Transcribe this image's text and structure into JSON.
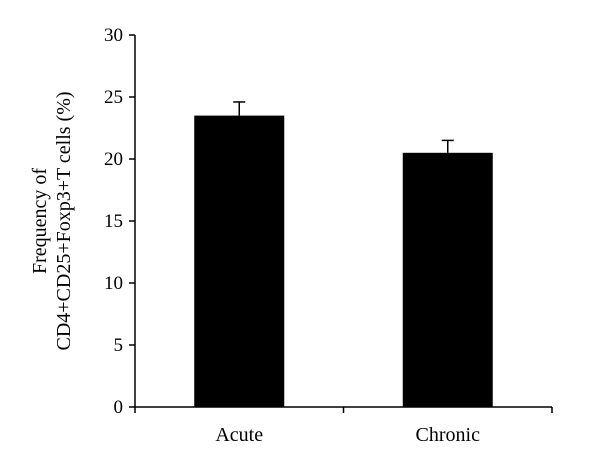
{
  "chart_data": {
    "type": "bar",
    "title": "",
    "xlabel": "",
    "ylabel_lines": [
      "Frequency of",
      "CD4+CD25+Foxp3+T cells (%)"
    ],
    "categories": [
      "Acute",
      "Chronic"
    ],
    "values": [
      23.5,
      20.5
    ],
    "error": [
      1.1,
      1.0
    ],
    "ylim": [
      0,
      30
    ],
    "yticks": [
      0,
      5,
      10,
      15,
      20,
      25,
      30
    ],
    "grid": false,
    "legend": "none",
    "bar_color": "#000000"
  }
}
